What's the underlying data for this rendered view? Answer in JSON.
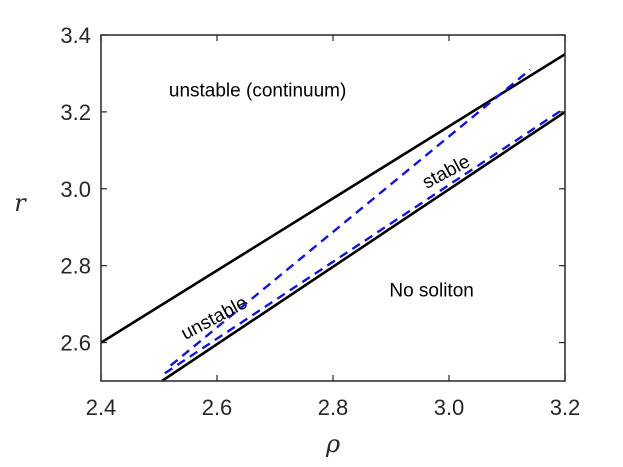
{
  "chart_data": {
    "type": "line",
    "title": "",
    "xlabel": "ρ",
    "ylabel": "r",
    "xlim": [
      2.4,
      3.2
    ],
    "ylim": [
      2.5,
      3.4
    ],
    "xticks": [
      2.4,
      2.6,
      2.8,
      3.0,
      3.2
    ],
    "xtick_labels": [
      "2.4",
      "2.6",
      "2.8",
      "3.0",
      "3.2"
    ],
    "yticks": [
      2.6,
      2.8,
      3.0,
      3.2,
      3.4
    ],
    "ytick_labels": [
      "2.6",
      "2.8",
      "3.0",
      "3.2",
      "3.4"
    ],
    "grid": false,
    "series": [
      {
        "color": "#000000",
        "style": "solid",
        "x": [
          2.4,
          3.2
        ],
        "y": [
          2.6,
          3.35
        ]
      },
      {
        "color": "#000000",
        "style": "solid",
        "x": [
          2.505,
          3.2
        ],
        "y": [
          2.5,
          3.2
        ]
      },
      {
        "color": "#1515d8",
        "style": "dashed",
        "x": [
          2.52,
          3.14
        ],
        "y": [
          2.54,
          3.31
        ]
      },
      {
        "color": "#1515d8",
        "style": "dashed",
        "x": [
          2.51,
          3.2
        ],
        "y": [
          2.52,
          3.21
        ]
      }
    ],
    "annotations": [
      {
        "text": "unstable (continuum)",
        "x": 2.67,
        "y": 3.24,
        "rotation": 0
      },
      {
        "text": "stable",
        "x": 3.0,
        "y": 3.03,
        "rotation": -28
      },
      {
        "text": "unstable",
        "x": 2.6,
        "y": 2.65,
        "rotation": -28
      },
      {
        "text": "No soliton",
        "x": 2.97,
        "y": 2.72,
        "rotation": 0
      }
    ]
  }
}
